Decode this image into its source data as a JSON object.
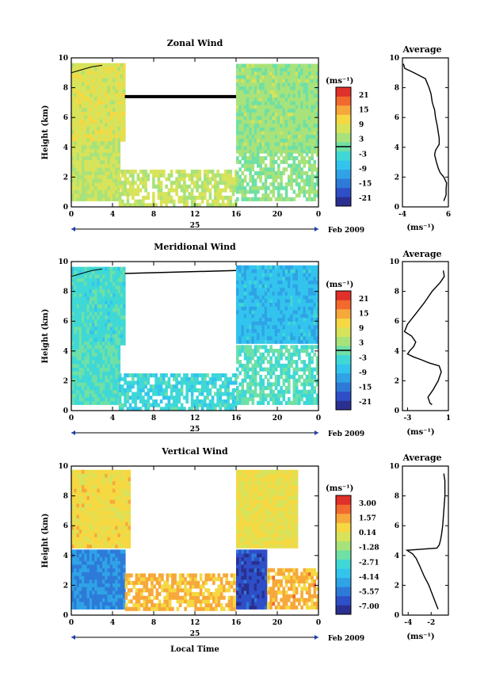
{
  "colors": {
    "cmap": [
      "#2b2f8f",
      "#2e4fc8",
      "#2e7ad8",
      "#2fa3e6",
      "#33c4ee",
      "#3fd8d6",
      "#6fe0a6",
      "#a8e27a",
      "#d7e35a",
      "#f5d842",
      "#f7a83a",
      "#f26a2e",
      "#e0302a"
    ],
    "background": "#ffffff"
  },
  "date_label": "Feb 2009",
  "day_label": "25",
  "xlabel_bottom": "Local Time",
  "chart_data": [
    {
      "type": "heatmap",
      "title": "Zonal Wind",
      "ylabel": "Height (km)",
      "x_ticks": [
        "0",
        "4",
        "8",
        "12",
        "16",
        "20",
        "0"
      ],
      "xlim": [
        0,
        24
      ],
      "ylim": [
        0,
        10
      ],
      "y_ticks": [
        "0",
        "2",
        "4",
        "6",
        "8",
        "10"
      ],
      "colorbar_unit": "(ms⁻¹)",
      "colorbar_ticks": [
        "21",
        "15",
        "9",
        "3",
        "-3",
        "-9",
        "-15",
        "-21"
      ],
      "colorbar_range": [
        -24,
        24
      ],
      "zero_contour": true,
      "regions": [
        {
          "x": [
            0,
            5.2
          ],
          "y": [
            4.4,
            9.6
          ],
          "value": 8
        },
        {
          "x": [
            0,
            4.6
          ],
          "y": [
            0.4,
            4.3
          ],
          "value": 6
        },
        {
          "x": [
            4.6,
            16
          ],
          "y": [
            0,
            2.4
          ],
          "value": 6,
          "sparse": true
        },
        {
          "x": [
            16,
            24
          ],
          "y": [
            3.6,
            9.6
          ],
          "value": 3
        },
        {
          "x": [
            16,
            24
          ],
          "y": [
            0.4,
            3.5
          ],
          "value": 2,
          "sparse": true
        }
      ],
      "average": {
        "title": "Average",
        "xlabel": "(ms⁻¹)",
        "x_ticks": [
          "-4",
          "6"
        ],
        "xlim": [
          -4,
          6
        ],
        "ylim": [
          0,
          10
        ],
        "y_ticks": [
          "0",
          "2",
          "4",
          "6",
          "8",
          "10"
        ],
        "x": [
          -3.8,
          -3.5,
          -1.5,
          1.0,
          1.8,
          2.2,
          2.5,
          3.0,
          3.2,
          3.6,
          3.8,
          4.0,
          4.0,
          3.6,
          3.2,
          3.0,
          3.4,
          3.8,
          4.2,
          5.0,
          5.6,
          5.5,
          5.5,
          5.0
        ],
        "y": [
          9.6,
          9.3,
          9.0,
          8.6,
          8.0,
          7.6,
          7.0,
          6.5,
          6.0,
          5.4,
          5.0,
          4.6,
          4.2,
          4.0,
          3.8,
          3.5,
          3.0,
          2.6,
          2.3,
          2.0,
          1.6,
          1.2,
          0.8,
          0.4
        ]
      }
    },
    {
      "type": "heatmap",
      "title": "Meridional Wind",
      "ylabel": "Height (km)",
      "x_ticks": [
        "0",
        "4",
        "8",
        "12",
        "16",
        "20",
        "0"
      ],
      "xlim": [
        0,
        24
      ],
      "ylim": [
        0,
        10
      ],
      "y_ticks": [
        "0",
        "2",
        "4",
        "6",
        "8",
        "10"
      ],
      "colorbar_unit": "(ms⁻¹)",
      "colorbar_ticks": [
        "21",
        "15",
        "9",
        "3",
        "-3",
        "-9",
        "-15",
        "-21"
      ],
      "colorbar_range": [
        -24,
        24
      ],
      "zero_contour": true,
      "regions": [
        {
          "x": [
            0,
            5.2
          ],
          "y": [
            4.4,
            9.6
          ],
          "value": -3
        },
        {
          "x": [
            0,
            4.6
          ],
          "y": [
            0.4,
            4.3
          ],
          "value": -2
        },
        {
          "x": [
            4.6,
            16
          ],
          "y": [
            0,
            2.4
          ],
          "value": -4,
          "sparse": true
        },
        {
          "x": [
            16,
            24
          ],
          "y": [
            4.5,
            9.6
          ],
          "value": -8
        },
        {
          "x": [
            16,
            24
          ],
          "y": [
            0.4,
            4.4
          ],
          "value": -2,
          "sparse": true
        }
      ],
      "average": {
        "title": "Average",
        "xlabel": "(ms⁻¹)",
        "x_ticks": [
          "-3",
          "1"
        ],
        "xlim": [
          -3.5,
          1
        ],
        "ylim": [
          0,
          10
        ],
        "y_ticks": [
          "0",
          "2",
          "4",
          "6",
          "8",
          "10"
        ],
        "x": [
          0.5,
          0.6,
          0.2,
          -0.6,
          -1.4,
          -2.2,
          -3.0,
          -3.3,
          -2.6,
          -2.2,
          -2.4,
          -2.8,
          -3.0,
          -2.4,
          -1.6,
          -0.9,
          0.1,
          0.3,
          0.0,
          -0.5,
          -1.0,
          -0.8,
          -0.6
        ],
        "y": [
          9.4,
          9.0,
          8.6,
          8.0,
          7.2,
          6.5,
          5.8,
          5.3,
          5.0,
          4.6,
          4.3,
          4.0,
          3.8,
          3.6,
          3.4,
          3.2,
          3.0,
          2.6,
          2.0,
          1.4,
          0.9,
          0.5,
          0.4
        ]
      }
    },
    {
      "type": "heatmap",
      "title": "Vertical Wind",
      "ylabel": "Height (km)",
      "xlabel": "Local Time",
      "x_ticks": [
        "0",
        "4",
        "8",
        "12",
        "16",
        "20",
        "0"
      ],
      "xlim": [
        0,
        24
      ],
      "ylim": [
        0,
        10
      ],
      "y_ticks": [
        "0",
        "2",
        "4",
        "6",
        "8",
        "10"
      ],
      "colorbar_unit": "(ms⁻¹)",
      "colorbar_ticks": [
        "3.00",
        "1.57",
        "0.14",
        "-1.28",
        "-2.71",
        "-4.14",
        "-5.57",
        "-7.00"
      ],
      "colorbar_range": [
        -7.7,
        3.7
      ],
      "zero_contour": false,
      "regions": [
        {
          "x": [
            0,
            5.6
          ],
          "y": [
            4.5,
            9.6
          ],
          "value": 0.5
        },
        {
          "x": [
            0,
            5.2
          ],
          "y": [
            0.4,
            4.4
          ],
          "value": -5.2
        },
        {
          "x": [
            5.2,
            16
          ],
          "y": [
            0.3,
            2.6
          ],
          "value": 1.2,
          "sparse": true
        },
        {
          "x": [
            16,
            22
          ],
          "y": [
            4.5,
            9.6
          ],
          "value": 0.3
        },
        {
          "x": [
            16,
            19
          ],
          "y": [
            0.4,
            4.4
          ],
          "value": -6.5
        },
        {
          "x": [
            19,
            24
          ],
          "y": [
            0.4,
            3.0
          ],
          "value": 1.3,
          "sparse": true
        }
      ],
      "average": {
        "title": "Average",
        "xlabel": "(ms⁻¹)",
        "x_ticks": [
          "-4",
          "-2"
        ],
        "xlim": [
          -4.5,
          -0.5
        ],
        "ylim": [
          0,
          10
        ],
        "y_ticks": [
          "0",
          "2",
          "4",
          "6",
          "8",
          "10"
        ],
        "x": [
          -0.9,
          -0.8,
          -0.8,
          -0.9,
          -1.0,
          -1.1,
          -1.2,
          -1.3,
          -1.5,
          -4.1,
          -3.6,
          -3.3,
          -3.0,
          -2.6,
          -2.2,
          -1.9,
          -1.7,
          -1.5,
          -1.4
        ],
        "y": [
          9.5,
          9.0,
          8.0,
          7.0,
          6.0,
          5.4,
          5.0,
          4.7,
          4.5,
          4.35,
          4.1,
          3.8,
          3.3,
          2.6,
          2.0,
          1.4,
          1.0,
          0.6,
          0.4
        ]
      }
    }
  ]
}
